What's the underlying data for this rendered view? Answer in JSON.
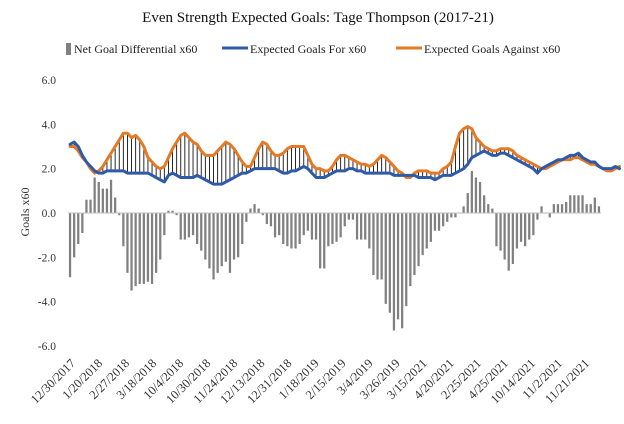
{
  "chart_data": {
    "type": "bar+line",
    "title": "Even Strength Expected Goals: Tage Thompson (2017-21)",
    "ylabel": "Goals x60",
    "xlabel": "",
    "ylim": [
      -6,
      6
    ],
    "yticks": [
      "6.0",
      "4.0",
      "2.0",
      "0.0",
      "-2.0",
      "-4.0",
      "-6.0"
    ],
    "grid": false,
    "legend_position": "top",
    "x_tick_labels": [
      "12/30/2017",
      "1/20/2018",
      "2/27/2018",
      "3/18/2018",
      "10/4/2018",
      "10/30/2018",
      "11/24/2018",
      "12/13/2018",
      "12/31/2018",
      "1/18/2019",
      "2/15/2019",
      "3/4/2019",
      "3/26/2019",
      "3/15/2021",
      "4/20/2021",
      "2/25/2021",
      "4/25/2021",
      "10/14/2021",
      "11/2/2021",
      "11/21/2021"
    ],
    "series": [
      {
        "name": "Net Goal Differential x60",
        "type": "bar",
        "color": "#808080",
        "values": [
          -2.9,
          -2.0,
          -1.4,
          -0.9,
          0.6,
          0.6,
          1.6,
          1.4,
          1.1,
          1.1,
          1.5,
          0.7,
          -0.1,
          -1.5,
          -2.7,
          -3.5,
          -3.3,
          -3.2,
          -3.2,
          -3.1,
          -3.2,
          -2.7,
          -2.1,
          -1.0,
          0.1,
          0.1,
          -0.1,
          -1.2,
          -1.2,
          -1.1,
          -1.0,
          -1.4,
          -1.7,
          -2.1,
          -2.5,
          -3.0,
          -2.7,
          -2.4,
          -2.2,
          -2.7,
          -2.1,
          -2.0,
          -1.4,
          -0.4,
          0.2,
          0.4,
          0.2,
          -0.1,
          -0.5,
          -0.6,
          -1.1,
          -1.0,
          -1.4,
          -1.5,
          -1.6,
          -1.6,
          -1.4,
          -1.0,
          -0.8,
          -1.2,
          -1.2,
          -2.5,
          -2.5,
          -1.5,
          -1.4,
          -1.3,
          -1.1,
          -0.6,
          -0.3,
          -0.3,
          -1.2,
          -1.2,
          -1.2,
          -1.6,
          -2.8,
          -3.0,
          -3.0,
          -4.1,
          -4.5,
          -5.3,
          -4.8,
          -5.2,
          -4.2,
          -3.3,
          -2.8,
          -2.4,
          -1.9,
          -1.6,
          -1.3,
          -0.8,
          -0.8,
          -0.6,
          -0.4,
          -0.2,
          -0.2,
          0.0,
          0.3,
          0.9,
          1.9,
          1.6,
          1.4,
          0.8,
          0.4,
          0.2,
          -1.5,
          -1.7,
          -2.1,
          -2.6,
          -2.3,
          -1.6,
          -1.3,
          -1.5,
          -1.2,
          -1.0,
          -0.3,
          0.3,
          0.0,
          -0.2,
          0.4,
          0.4,
          0.4,
          0.5,
          0.8,
          0.8,
          0.8,
          0.8,
          0.4,
          0.4,
          0.7,
          0.3
        ]
      },
      {
        "name": "Expected Goals For x60",
        "type": "line",
        "color": "#2f5aa8",
        "values": [
          3.1,
          3.2,
          3.0,
          2.6,
          2.3,
          2.1,
          1.9,
          1.8,
          1.8,
          1.9,
          1.9,
          1.9,
          1.9,
          1.9,
          1.8,
          1.8,
          1.8,
          1.8,
          1.8,
          1.8,
          1.7,
          1.6,
          1.5,
          1.4,
          1.7,
          1.8,
          1.7,
          1.6,
          1.6,
          1.6,
          1.6,
          1.7,
          1.6,
          1.5,
          1.4,
          1.3,
          1.3,
          1.3,
          1.4,
          1.5,
          1.6,
          1.7,
          1.8,
          1.8,
          1.9,
          2.0,
          2.0,
          2.0,
          2.0,
          2.0,
          2.0,
          1.9,
          1.8,
          1.8,
          1.9,
          1.9,
          2.0,
          2.1,
          2.0,
          1.8,
          1.6,
          1.6,
          1.6,
          1.7,
          1.8,
          1.9,
          1.9,
          1.9,
          2.0,
          2.0,
          1.9,
          1.9,
          1.8,
          1.8,
          1.8,
          1.8,
          1.8,
          1.8,
          1.8,
          1.7,
          1.7,
          1.7,
          1.7,
          1.7,
          1.7,
          1.6,
          1.6,
          1.6,
          1.6,
          1.5,
          1.6,
          1.7,
          1.7,
          1.7,
          1.8,
          1.9,
          2.0,
          2.2,
          2.5,
          2.6,
          2.7,
          2.8,
          2.7,
          2.6,
          2.6,
          2.7,
          2.7,
          2.6,
          2.5,
          2.4,
          2.3,
          2.2,
          2.1,
          2.0,
          1.8,
          2.0,
          2.1,
          2.2,
          2.3,
          2.4,
          2.4,
          2.5,
          2.6,
          2.6,
          2.7,
          2.5,
          2.4,
          2.3,
          2.3,
          2.1,
          2.0,
          2.0,
          2.0,
          2.1,
          2.0
        ]
      },
      {
        "name": "Expected Goals Against x60",
        "type": "line",
        "color": "#e57a26",
        "values": [
          3.0,
          3.0,
          2.8,
          2.5,
          2.3,
          2.0,
          1.8,
          1.9,
          2.1,
          2.4,
          2.7,
          3.0,
          3.3,
          3.6,
          3.6,
          3.4,
          3.5,
          3.3,
          3.0,
          2.5,
          2.3,
          2.1,
          2.0,
          2.1,
          2.5,
          2.9,
          3.2,
          3.5,
          3.6,
          3.4,
          3.2,
          3.1,
          2.8,
          2.6,
          2.6,
          2.6,
          2.8,
          3.0,
          3.2,
          3.1,
          2.9,
          2.6,
          2.3,
          2.1,
          2.1,
          2.5,
          2.9,
          3.2,
          3.1,
          2.8,
          2.6,
          2.6,
          2.7,
          2.9,
          3.0,
          3.0,
          3.0,
          3.0,
          2.6,
          2.2,
          2.0,
          2.0,
          1.9,
          1.9,
          2.1,
          2.4,
          2.6,
          2.6,
          2.5,
          2.4,
          2.3,
          2.2,
          2.2,
          2.1,
          2.2,
          2.4,
          2.6,
          2.5,
          2.3,
          2.1,
          1.9,
          1.8,
          1.6,
          1.6,
          1.8,
          1.9,
          1.9,
          1.9,
          1.8,
          1.8,
          1.8,
          2.0,
          2.1,
          2.3,
          3.0,
          3.6,
          3.8,
          3.9,
          3.8,
          3.4,
          3.2,
          3.0,
          2.9,
          2.8,
          2.8,
          2.9,
          2.9,
          2.9,
          2.8,
          2.6,
          2.5,
          2.4,
          2.3,
          2.2,
          2.1,
          2.0,
          2.0,
          2.1,
          2.2,
          2.3,
          2.4,
          2.4,
          2.4,
          2.5,
          2.5,
          2.4,
          2.3,
          2.2,
          2.2,
          2.1,
          2.0,
          1.9,
          1.9,
          2.0,
          2.1
        ]
      }
    ]
  }
}
